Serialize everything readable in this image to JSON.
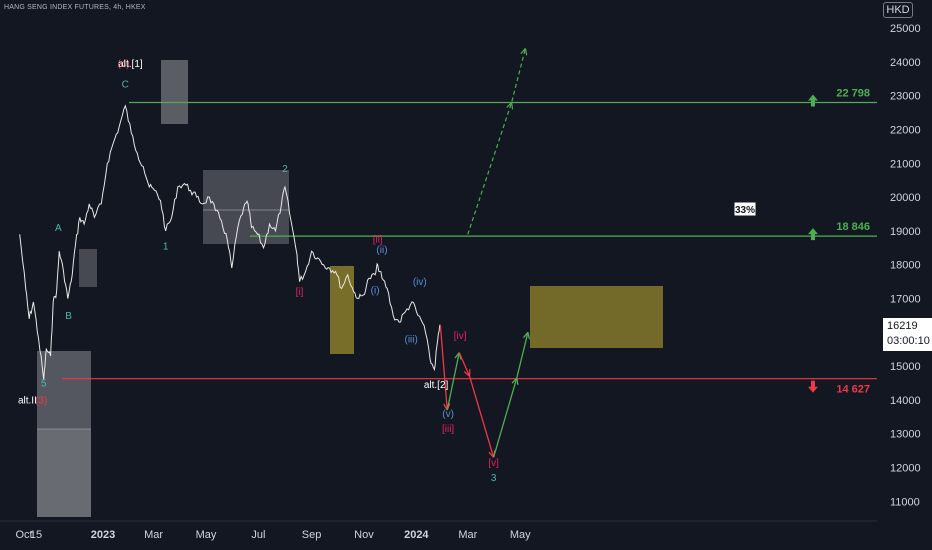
{
  "header": {
    "title": "HANG SENG INDEX FUTURES, 4h, HKEX",
    "currency": "HKD"
  },
  "price_box": {
    "price": "16219",
    "countdown": "03:00:10"
  },
  "colors": {
    "background": "#131722",
    "green": "#4caf50",
    "red": "#f23645",
    "teal": "#4db6ac",
    "pink": "#e91e63",
    "blue": "#5b8fd6",
    "olive": "#8c7e2a"
  },
  "chart_data": {
    "type": "line",
    "title": "HANG SENG INDEX FUTURES, 4h, HKEX",
    "xlabel": "",
    "ylabel": "",
    "ylim": [
      10500,
      25600
    ],
    "y_ticks": [
      25000,
      24000,
      23000,
      22000,
      21000,
      20000,
      19000,
      18000,
      17000,
      16000,
      15000,
      14000,
      13000,
      12000,
      11000
    ],
    "x_ticks": [
      {
        "label": "Oct",
        "x": "2022-10-01"
      },
      {
        "label": "15",
        "x": "2022-10-15"
      },
      {
        "label": "2023",
        "x": "2023-01-01"
      },
      {
        "label": "Mar",
        "x": "2023-03-01"
      },
      {
        "label": "May",
        "x": "2023-05-01"
      },
      {
        "label": "Jul",
        "x": "2023-07-01"
      },
      {
        "label": "Sep",
        "x": "2023-09-01"
      },
      {
        "label": "Nov",
        "x": "2023-11-01"
      },
      {
        "label": "2024",
        "x": "2024-01-01"
      },
      {
        "label": "Mar",
        "x": "2024-03-01"
      },
      {
        "label": "May",
        "x": "2024-05-01"
      }
    ],
    "series": [
      {
        "values": [
          [
            "2022-09-26",
            18900
          ],
          [
            "2022-10-03",
            17300
          ],
          [
            "2022-10-07",
            16400
          ],
          [
            "2022-10-12",
            16900
          ],
          [
            "2022-10-18",
            15800
          ],
          [
            "2022-10-24",
            14600
          ],
          [
            "2022-10-27",
            15500
          ],
          [
            "2022-11-01",
            15300
          ],
          [
            "2022-11-04",
            16900
          ],
          [
            "2022-11-08",
            17200
          ],
          [
            "2022-11-11",
            18400
          ],
          [
            "2022-11-16",
            17800
          ],
          [
            "2022-11-21",
            17000
          ],
          [
            "2022-11-25",
            17500
          ],
          [
            "2022-11-30",
            18600
          ],
          [
            "2022-12-05",
            19400
          ],
          [
            "2022-12-10",
            19200
          ],
          [
            "2022-12-16",
            19800
          ],
          [
            "2022-12-22",
            19400
          ],
          [
            "2022-12-30",
            19800
          ],
          [
            "2023-01-06",
            21000
          ],
          [
            "2023-01-13",
            21600
          ],
          [
            "2023-01-20",
            22100
          ],
          [
            "2023-01-27",
            22700
          ],
          [
            "2023-02-03",
            21900
          ],
          [
            "2023-02-10",
            21300
          ],
          [
            "2023-02-17",
            20900
          ],
          [
            "2023-02-24",
            20300
          ],
          [
            "2023-03-02",
            20200
          ],
          [
            "2023-03-09",
            19900
          ],
          [
            "2023-03-15",
            19000
          ],
          [
            "2023-03-22",
            19400
          ],
          [
            "2023-03-29",
            20300
          ],
          [
            "2023-04-06",
            20400
          ],
          [
            "2023-04-13",
            20200
          ],
          [
            "2023-04-20",
            20000
          ],
          [
            "2023-04-27",
            19800
          ],
          [
            "2023-05-05",
            20000
          ],
          [
            "2023-05-12",
            19600
          ],
          [
            "2023-05-19",
            19300
          ],
          [
            "2023-05-26",
            18700
          ],
          [
            "2023-05-31",
            17900
          ],
          [
            "2023-06-07",
            19100
          ],
          [
            "2023-06-14",
            19700
          ],
          [
            "2023-06-19",
            19800
          ],
          [
            "2023-06-23",
            19100
          ],
          [
            "2023-06-30",
            18900
          ],
          [
            "2023-07-07",
            18500
          ],
          [
            "2023-07-14",
            19200
          ],
          [
            "2023-07-21",
            19000
          ],
          [
            "2023-07-28",
            19800
          ],
          [
            "2023-08-01",
            20300
          ],
          [
            "2023-08-08",
            19300
          ],
          [
            "2023-08-15",
            18300
          ],
          [
            "2023-08-18",
            17500
          ],
          [
            "2023-08-25",
            17800
          ],
          [
            "2023-09-01",
            18400
          ],
          [
            "2023-09-08",
            18200
          ],
          [
            "2023-09-15",
            18000
          ],
          [
            "2023-09-22",
            17900
          ],
          [
            "2023-09-29",
            17800
          ],
          [
            "2023-10-06",
            17300
          ],
          [
            "2023-10-13",
            17700
          ],
          [
            "2023-10-20",
            17200
          ],
          [
            "2023-10-26",
            17000
          ],
          [
            "2023-10-31",
            17100
          ],
          [
            "2023-11-07",
            17600
          ],
          [
            "2023-11-14",
            17700
          ],
          [
            "2023-11-17",
            18000
          ],
          [
            "2023-11-22",
            17600
          ],
          [
            "2023-11-28",
            17300
          ],
          [
            "2023-12-05",
            16500
          ],
          [
            "2023-12-12",
            16300
          ],
          [
            "2023-12-19",
            16600
          ],
          [
            "2023-12-27",
            16900
          ],
          [
            "2024-01-03",
            16500
          ],
          [
            "2024-01-10",
            16200
          ],
          [
            "2024-01-17",
            15200
          ],
          [
            "2024-01-22",
            14900
          ],
          [
            "2024-01-26",
            15800
          ],
          [
            "2024-01-29",
            16219
          ]
        ]
      }
    ],
    "horizontal_levels": [
      {
        "value": 22798,
        "label": "22 798",
        "color": "#4caf50",
        "arrow": "up"
      },
      {
        "value": 18846,
        "label": "18 846",
        "color": "#4caf50",
        "arrow": "up"
      },
      {
        "value": 14627,
        "label": "14 627",
        "color": "#f23645",
        "arrow": "down"
      }
    ],
    "projection": {
      "primary": [
        [
          "2024-01-29",
          16219
        ],
        [
          "2024-02-06",
          13700
        ],
        [
          "2024-02-20",
          15400
        ],
        [
          "2024-03-03",
          14700
        ],
        [
          "2024-03-31",
          12300
        ],
        [
          "2024-04-27",
          14650
        ],
        [
          "2024-05-10",
          16000
        ]
      ],
      "alt_dashed": [
        [
          "2024-03-01",
          18900
        ],
        [
          "2024-04-21",
          22800
        ],
        [
          "2024-05-07",
          24400
        ]
      ],
      "alt_probability": "33%"
    },
    "wave_labels": [
      {
        "text": "(4)",
        "x": "2023-01-25",
        "y": 23850,
        "color": "#f23645"
      },
      {
        "text": "alt.[1]",
        "x": "2023-02-02",
        "y": 23850,
        "color": "#ffffff"
      },
      {
        "text": "C",
        "x": "2023-01-27",
        "y": 23250,
        "color": "#4db6ac"
      },
      {
        "text": "A",
        "x": "2022-11-10",
        "y": 19000,
        "color": "#4db6ac"
      },
      {
        "text": "B",
        "x": "2022-11-22",
        "y": 16400,
        "color": "#4db6ac"
      },
      {
        "text": "5",
        "x": "2022-10-24",
        "y": 14400,
        "color": "#4db6ac"
      },
      {
        "text": "(3)",
        "x": "2022-10-21",
        "y": 13900,
        "color": "#f23645"
      },
      {
        "text": "alt.II",
        "x": "2022-10-05",
        "y": 13900,
        "color": "#ffffff"
      },
      {
        "text": "1",
        "x": "2023-03-15",
        "y": 18450,
        "color": "#4db6ac"
      },
      {
        "text": "2",
        "x": "2023-08-01",
        "y": 20750,
        "color": "#4db6ac"
      },
      {
        "text": "[i]",
        "x": "2023-08-18",
        "y": 17100,
        "color": "#e91e63"
      },
      {
        "text": "[ii]",
        "x": "2023-11-17",
        "y": 18650,
        "color": "#e91e63"
      },
      {
        "text": "(ii)",
        "x": "2023-11-22",
        "y": 18350,
        "color": "#5b8fd6"
      },
      {
        "text": "(i)",
        "x": "2023-11-14",
        "y": 17150,
        "color": "#5b8fd6"
      },
      {
        "text": "(iv)",
        "x": "2024-01-05",
        "y": 17400,
        "color": "#5b8fd6"
      },
      {
        "text": "(iii)",
        "x": "2023-12-26",
        "y": 15700,
        "color": "#5b8fd6"
      },
      {
        "text": "alt.[2]",
        "x": "2024-01-24",
        "y": 14350,
        "color": "#ffffff"
      },
      {
        "text": "(v)",
        "x": "2024-02-07",
        "y": 13500,
        "color": "#5b8fd6"
      },
      {
        "text": "[iii]",
        "x": "2024-02-07",
        "y": 13050,
        "color": "#e91e63"
      },
      {
        "text": "[iv]",
        "x": "2024-02-21",
        "y": 15800,
        "color": "#e91e63"
      },
      {
        "text": "[v]",
        "x": "2024-03-31",
        "y": 12050,
        "color": "#e91e63"
      },
      {
        "text": "3",
        "x": "2024-03-31",
        "y": 11600,
        "color": "#4db6ac"
      }
    ]
  }
}
